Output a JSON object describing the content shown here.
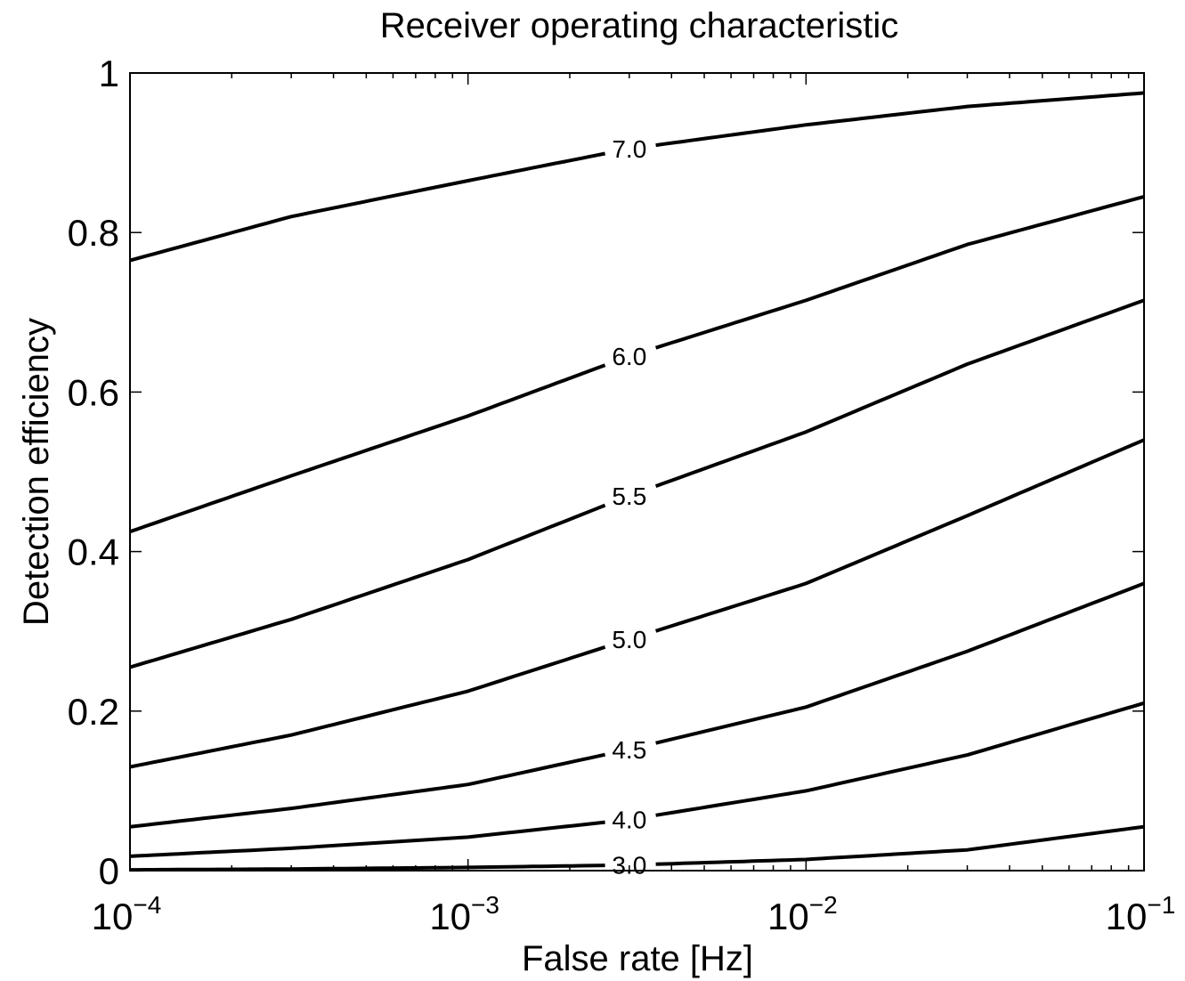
{
  "chart_data": {
    "type": "line",
    "title": "Receiver operating characteristic",
    "xlabel": "False rate [Hz]",
    "ylabel": "Detection efficiency",
    "x_scale": "log",
    "xlim": [
      0.0001,
      0.1
    ],
    "ylim": [
      0,
      1
    ],
    "x_ticks": [
      {
        "value": 0.0001,
        "base": "10",
        "exp": "−4"
      },
      {
        "value": 0.001,
        "base": "10",
        "exp": "−3"
      },
      {
        "value": 0.01,
        "base": "10",
        "exp": "−2"
      },
      {
        "value": 0.1,
        "base": "10",
        "exp": "−1"
      }
    ],
    "y_ticks": [
      {
        "value": 0,
        "label": "0"
      },
      {
        "value": 0.2,
        "label": "0.2"
      },
      {
        "value": 0.4,
        "label": "0.4"
      },
      {
        "value": 0.6,
        "label": "0.6"
      },
      {
        "value": 0.8,
        "label": "0.8"
      },
      {
        "value": 1,
        "label": "1"
      }
    ],
    "grid": false,
    "line_color": "#000000",
    "label_x": 0.003,
    "series": [
      {
        "label": "7.0",
        "x": [
          0.0001,
          0.0003,
          0.001,
          0.003,
          0.01,
          0.03,
          0.1
        ],
        "y": [
          0.765,
          0.82,
          0.865,
          0.905,
          0.935,
          0.958,
          0.975
        ]
      },
      {
        "label": "6.0",
        "x": [
          0.0001,
          0.0003,
          0.001,
          0.003,
          0.01,
          0.03,
          0.1
        ],
        "y": [
          0.425,
          0.495,
          0.57,
          0.645,
          0.715,
          0.785,
          0.845
        ]
      },
      {
        "label": "5.5",
        "x": [
          0.0001,
          0.0003,
          0.001,
          0.003,
          0.01,
          0.03,
          0.1
        ],
        "y": [
          0.255,
          0.315,
          0.39,
          0.47,
          0.55,
          0.635,
          0.715
        ]
      },
      {
        "label": "5.0",
        "x": [
          0.0001,
          0.0003,
          0.001,
          0.003,
          0.01,
          0.03,
          0.1
        ],
        "y": [
          0.13,
          0.17,
          0.225,
          0.29,
          0.36,
          0.445,
          0.54
        ]
      },
      {
        "label": "4.5",
        "x": [
          0.0001,
          0.0003,
          0.001,
          0.003,
          0.01,
          0.03,
          0.1
        ],
        "y": [
          0.055,
          0.078,
          0.108,
          0.152,
          0.205,
          0.275,
          0.36
        ]
      },
      {
        "label": "4.0",
        "x": [
          0.0001,
          0.0003,
          0.001,
          0.003,
          0.01,
          0.03,
          0.1
        ],
        "y": [
          0.018,
          0.028,
          0.042,
          0.064,
          0.1,
          0.145,
          0.21
        ]
      },
      {
        "label": "3.0",
        "x": [
          0.0001,
          0.0003,
          0.001,
          0.003,
          0.01,
          0.03,
          0.1
        ],
        "y": [
          0.001,
          0.002,
          0.004,
          0.007,
          0.014,
          0.026,
          0.055
        ]
      }
    ]
  }
}
